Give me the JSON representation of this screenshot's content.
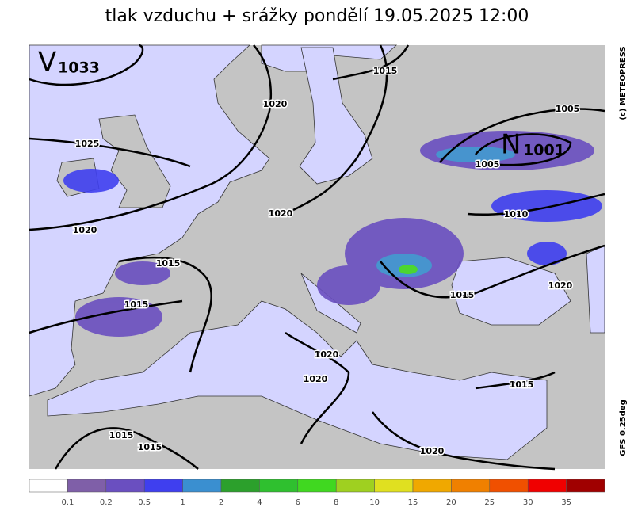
{
  "title": "tlak vzduchu + srážky pondělí 19.05.2025 12:00",
  "pressure_centers": [
    {
      "letter": "V",
      "value": 1033
    },
    {
      "letter": "N",
      "value": 1001
    }
  ],
  "isobar_labels": [
    1015,
    1020,
    1025,
    1020,
    1020,
    1015,
    1015,
    1015,
    1020,
    1020,
    1015,
    1015,
    1020,
    1015,
    1010,
    1005,
    1005,
    1020
  ],
  "credits": [
    "(c) METEOPRESS",
    "GFS 0.25deg"
  ],
  "colorbar": {
    "colors": [
      "#ffffff",
      "#7f5fa8",
      "#6a4fc0",
      "#3f3fef",
      "#3a8fd0",
      "#2ca02c",
      "#2fc02f",
      "#40d820",
      "#9fd020",
      "#e0e020",
      "#f0a800",
      "#f08000",
      "#f05000",
      "#f00000",
      "#a00000"
    ],
    "labels": [
      0.1,
      0.2,
      0.5,
      1,
      2,
      4,
      6,
      8,
      10,
      15,
      20,
      25,
      30,
      35
    ]
  }
}
